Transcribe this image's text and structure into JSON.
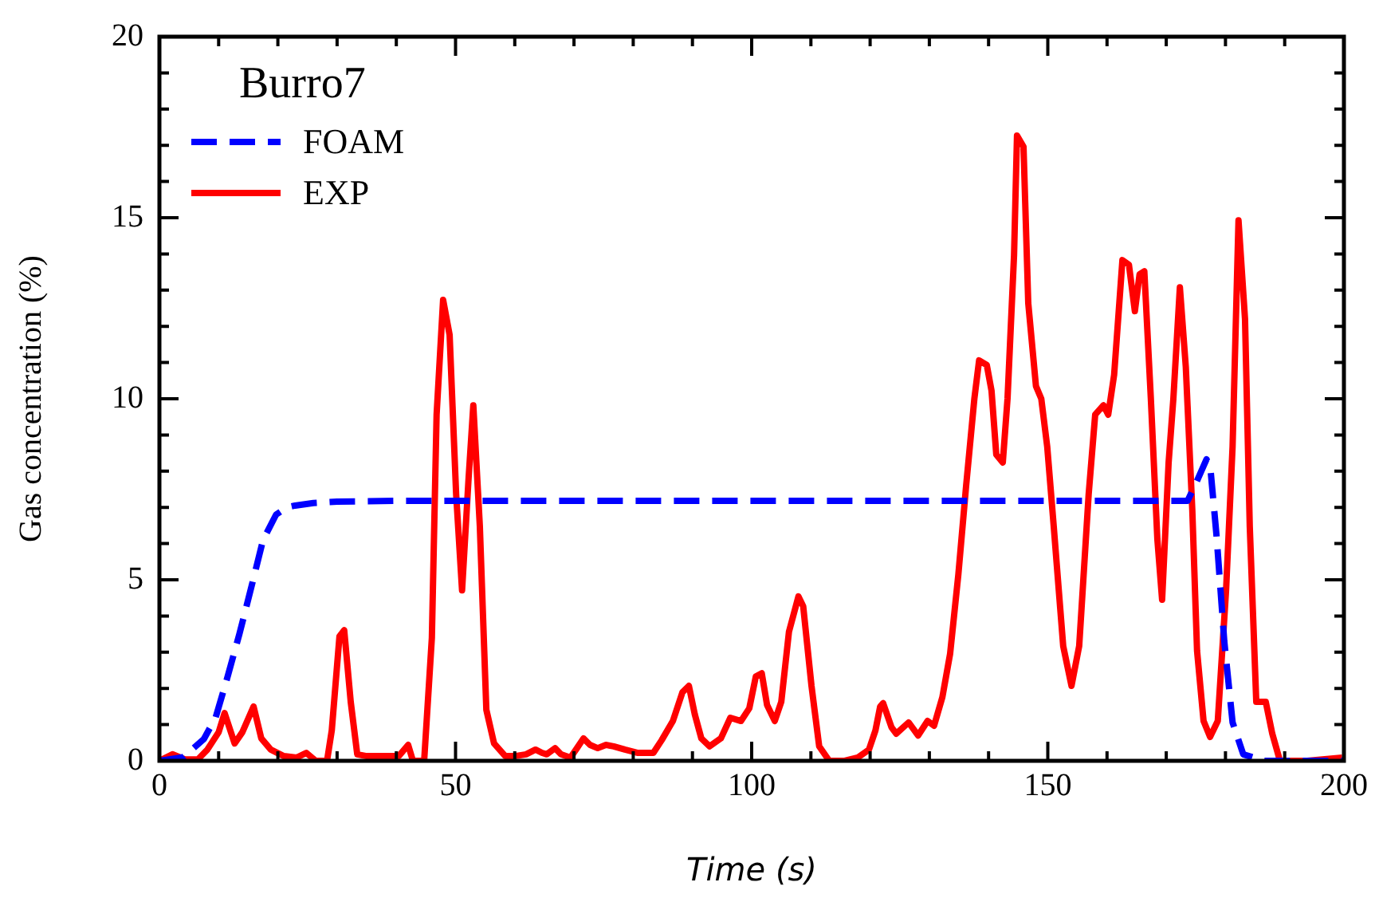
{
  "chart_data": {
    "type": "line",
    "xlabel": "Time (s)",
    "ylabel": "Gas concentration (%)",
    "legend_title": "Burro7",
    "legend": "top left",
    "grid": false,
    "marker": "none",
    "xlim": [
      0,
      200
    ],
    "xticks": [
      0,
      50,
      100,
      150,
      200
    ],
    "ylim": [
      0,
      20
    ],
    "yticks": [
      0,
      5,
      10,
      15,
      20
    ],
    "series": [
      {
        "name": "FOAM",
        "color": "#0000ff",
        "line_style": "dashed",
        "x": [
          0,
          4,
          7.5,
          9.5,
          11.3,
          13.5,
          15.6,
          17.5,
          19.7,
          21.5,
          22.9,
          26,
          30,
          40,
          100,
          173.6,
          175,
          176.8,
          177.5,
          178.5,
          179.8,
          181.2,
          183,
          186.5,
          200
        ],
        "values": [
          0,
          0.1,
          0.6,
          1.2,
          2.2,
          3.5,
          4.85,
          6.1,
          6.8,
          7.0,
          7.05,
          7.12,
          7.16,
          7.18,
          7.18,
          7.18,
          7.66,
          8.33,
          8.0,
          6.2,
          3.3,
          1.06,
          0.18,
          0,
          0
        ]
      },
      {
        "name": "EXP",
        "color": "#ff0000",
        "line_style": "solid",
        "x": [
          0,
          2.2,
          4.3,
          6.5,
          8.1,
          10.0,
          11.0,
          12.7,
          14.0,
          15.9,
          17.2,
          18.8,
          21.0,
          23.2,
          24.8,
          26.4,
          28.3,
          29.1,
          30.4,
          31.2,
          32.3,
          33.4,
          35.0,
          37.1,
          40.4,
          42.0,
          42.8,
          44.7,
          46.0,
          46.8,
          47.9,
          49.0,
          50.1,
          51.1,
          52.2,
          53.0,
          54.1,
          55.2,
          56.5,
          58.4,
          60.0,
          61.9,
          63.5,
          64.6,
          65.4,
          66.8,
          67.8,
          69.4,
          70.5,
          71.6,
          72.7,
          74.0,
          75.4,
          76.7,
          78.6,
          80.8,
          83.4,
          84.8,
          86.7,
          88.3,
          89.4,
          90.4,
          91.5,
          92.9,
          94.8,
          96.4,
          98.2,
          99.6,
          100.7,
          101.7,
          102.6,
          103.9,
          105.0,
          106.3,
          107.9,
          108.7,
          110.1,
          111.4,
          113.1,
          115.7,
          117.9,
          119.8,
          120.9,
          121.7,
          122.2,
          123.6,
          124.4,
          126.5,
          128.1,
          129.7,
          130.8,
          132.2,
          133.5,
          134.9,
          136.2,
          137.6,
          138.4,
          139.7,
          140.5,
          141.3,
          142.4,
          143.2,
          144.3,
          144.8,
          145.9,
          146.7,
          148.0,
          148.9,
          149.9,
          151.0,
          152.6,
          154.0,
          155.3,
          156.9,
          158.0,
          159.4,
          160.2,
          161.2,
          162.6,
          163.7,
          164.7,
          165.5,
          166.3,
          167.4,
          168.5,
          169.3,
          170.4,
          171.2,
          172.3,
          173.3,
          174.4,
          175.2,
          176.3,
          177.4,
          178.7,
          180.1,
          181.2,
          182.2,
          183.3,
          184.1,
          185.2,
          186.8,
          187.9,
          189.2,
          193.8,
          199.7
        ],
        "values": [
          0,
          0.18,
          0.04,
          0.04,
          0.31,
          0.79,
          1.32,
          0.48,
          0.79,
          1.5,
          0.62,
          0.31,
          0.13,
          0.09,
          0.22,
          0,
          0,
          0.84,
          3.44,
          3.61,
          1.63,
          0.18,
          0.13,
          0.13,
          0.13,
          0.44,
          0,
          0,
          3.39,
          9.56,
          12.73,
          11.76,
          7.36,
          4.71,
          7.8,
          9.82,
          6.48,
          1.41,
          0.48,
          0.13,
          0.13,
          0.18,
          0.31,
          0.22,
          0.18,
          0.35,
          0.18,
          0.09,
          0.35,
          0.62,
          0.44,
          0.35,
          0.44,
          0.4,
          0.31,
          0.22,
          0.22,
          0.57,
          1.1,
          1.89,
          2.07,
          1.28,
          0.62,
          0.4,
          0.62,
          1.19,
          1.1,
          1.45,
          2.33,
          2.42,
          1.54,
          1.1,
          1.63,
          3.57,
          4.54,
          4.27,
          2.07,
          0.4,
          0,
          0,
          0.09,
          0.31,
          0.84,
          1.5,
          1.59,
          0.93,
          0.75,
          1.06,
          0.7,
          1.1,
          0.97,
          1.76,
          2.95,
          5.15,
          7.58,
          10.0,
          11.06,
          10.93,
          10.22,
          8.46,
          8.24,
          10.0,
          13.96,
          17.27,
          16.96,
          12.64,
          10.35,
          10.0,
          8.68,
          6.48,
          3.17,
          2.07,
          3.17,
          7.36,
          9.56,
          9.82,
          9.56,
          10.66,
          13.83,
          13.7,
          12.42,
          13.44,
          13.52,
          10.0,
          6.12,
          4.45,
          8.24,
          10.0,
          13.08,
          10.88,
          6.92,
          3.04,
          1.1,
          0.66,
          1.1,
          4.71,
          8.68,
          14.93,
          12.2,
          6.48,
          1.63,
          1.63,
          0.75,
          0,
          0,
          0.09
        ]
      }
    ]
  }
}
